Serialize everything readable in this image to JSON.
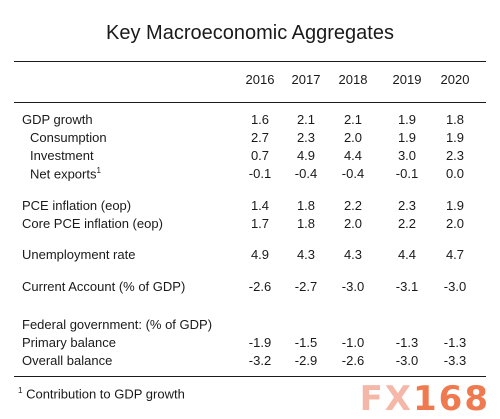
{
  "title": "Key Macroeconomic Aggregates",
  "years": [
    "2016",
    "2017",
    "2018",
    "2019",
    "2020"
  ],
  "rows": [
    {
      "label": "GDP growth",
      "values": [
        "1.6",
        "2.1",
        "2.1",
        "1.9",
        "1.8"
      ]
    },
    {
      "label": "Consumption",
      "values": [
        "2.7",
        "2.3",
        "2.0",
        "1.9",
        "1.9"
      ]
    },
    {
      "label": "Investment",
      "values": [
        "0.7",
        "4.9",
        "4.4",
        "3.0",
        "2.3"
      ]
    },
    {
      "label": "Net exports",
      "footnote_mark": "1",
      "values": [
        "-0.1",
        "-0.4",
        "-0.4",
        "-0.1",
        "0.0"
      ]
    },
    {
      "label": "PCE inflation (eop)",
      "values": [
        "1.4",
        "1.8",
        "2.2",
        "2.3",
        "1.9"
      ]
    },
    {
      "label": "Core PCE inflation (eop)",
      "values": [
        "1.7",
        "1.8",
        "2.0",
        "2.2",
        "2.0"
      ]
    },
    {
      "label": "Unemployment rate",
      "values": [
        "4.9",
        "4.3",
        "4.3",
        "4.4",
        "4.7"
      ]
    },
    {
      "label": "Current Account (% of GDP)",
      "values": [
        "-2.6",
        "-2.7",
        "-3.0",
        "-3.1",
        "-3.0"
      ]
    },
    {
      "label": "Federal government: (% of GDP)",
      "values": []
    },
    {
      "label": "Primary balance",
      "values": [
        "-1.9",
        "-1.5",
        "-1.0",
        "-1.3",
        "-1.3"
      ]
    },
    {
      "label": "Overall balance",
      "values": [
        "-3.2",
        "-2.9",
        "-2.6",
        "-3.0",
        "-3.3"
      ]
    }
  ],
  "footnote": {
    "mark": "1",
    "text": "Contribution to GDP growth"
  },
  "watermark": {
    "prefix": "FX",
    "number": "168"
  }
}
